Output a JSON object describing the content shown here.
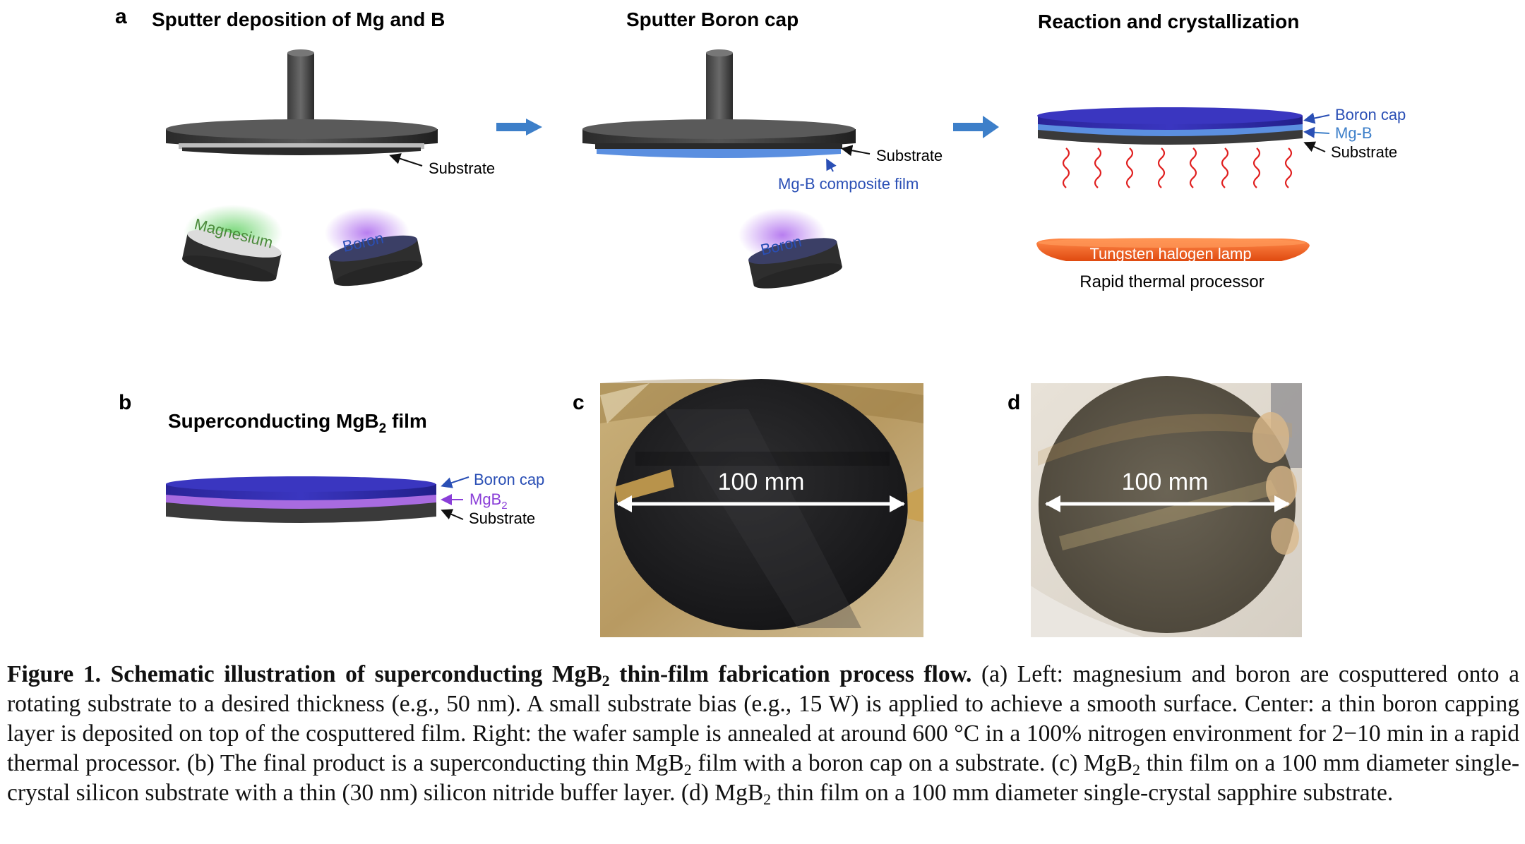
{
  "panel_a": {
    "letter": "a",
    "step1": {
      "title": "Sputter deposition of Mg and B",
      "substrate_label": "Substrate",
      "target_mg": "Magnesium",
      "target_b": "Boron"
    },
    "step2": {
      "title": "Sputter Boron cap",
      "substrate_label": "Substrate",
      "film_label": "Mg-B composite film",
      "target_b": "Boron"
    },
    "step3": {
      "title": "Reaction and crystallization",
      "boron_cap_label": "Boron cap",
      "mgb_label": "Mg-B",
      "substrate_label": "Substrate",
      "lamp_label": "Tungsten halogen lamp",
      "processor_label": "Rapid thermal processor"
    }
  },
  "panel_b": {
    "letter": "b",
    "title_pre": "Superconducting MgB",
    "title_sub": "2",
    "title_post": " film",
    "boron_cap_label": "Boron cap",
    "mgb2_pre": "MgB",
    "mgb2_sub": "2",
    "substrate_label": "Substrate"
  },
  "panel_c": {
    "letter": "c",
    "scale_label": "100 mm"
  },
  "panel_d": {
    "letter": "d",
    "scale_label": "100 mm"
  },
  "caption": {
    "lead": "Figure 1. Schematic illustration of superconducting MgB",
    "lead_sub": "2",
    "lead_post": " thin-film fabrication process flow.",
    "s1": " (a) Left: magnesium and boron are cosputtered onto a rotating substrate to a desired thickness (e.g., 50 nm). A small substrate bias (e.g., 15 W) is applied to achieve a smooth surface. Center: a thin boron capping layer is deposited on top of the cosputtered film. Right: the wafer sample is annealed at around 600 °C in a 100% nitrogen environment for 2−10 min in a rapid thermal processor. (b) The final product is a superconducting thin MgB",
    "s1_sub": "2",
    "s2": " film with a boron cap on a substrate. (c) MgB",
    "s2_sub": "2",
    "s3": " thin film on a 100 mm diameter single-crystal silicon substrate with a thin (30 nm) silicon nitride buffer layer. (d) MgB",
    "s3_sub": "2",
    "s4": " thin film on a 100 mm diameter single-crystal sapphire substrate."
  },
  "colors": {
    "boron_cap": "#2f2aa6",
    "mgb_film": "#5b8fe0",
    "mgb2_film": "#a86be0",
    "substrate": "#3a3a3a",
    "arrow": "#3d7fc9",
    "lamp": "#f26a2a",
    "heat_wave": "#e02020",
    "label_blue": "#2a4fb5",
    "label_green": "#4a8a3a"
  }
}
